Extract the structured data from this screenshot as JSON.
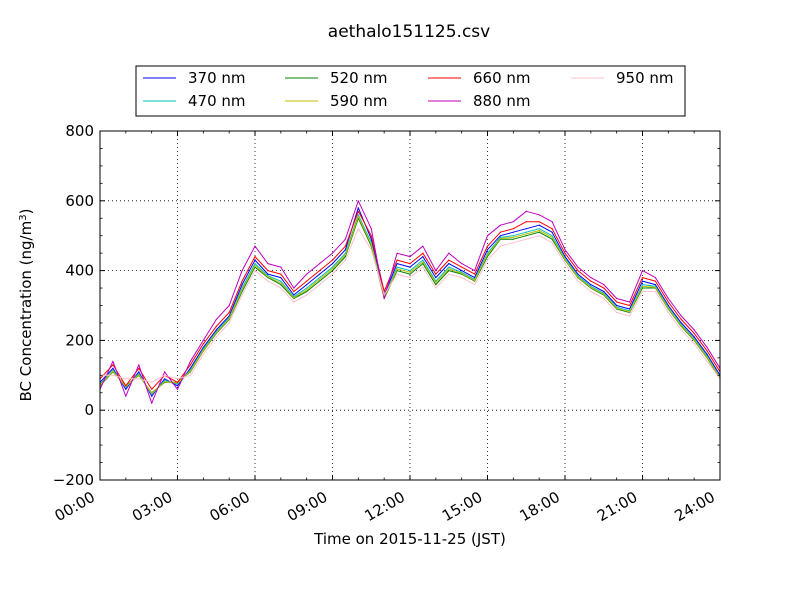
{
  "chart_data": {
    "type": "line",
    "title": "aethalo151125.csv",
    "xlabel": "Time on 2015-11-25 (JST)",
    "ylabel": "BC Concentration (ng/m3)",
    "ylabel_parts": {
      "base": "BC Concentration (ng/m",
      "sup": "3",
      "close": ")"
    },
    "xlim": [
      "00:00",
      "24:00"
    ],
    "ylim": [
      -200,
      800
    ],
    "x_ticks": [
      "00:00",
      "03:00",
      "06:00",
      "09:00",
      "12:00",
      "15:00",
      "18:00",
      "21:00",
      "24:00"
    ],
    "x_tick_hours": [
      0,
      3,
      6,
      9,
      12,
      15,
      18,
      21,
      24
    ],
    "y_ticks": [
      -200,
      0,
      200,
      400,
      600,
      800
    ],
    "grid": true,
    "legend_position": "top",
    "x_hours": [
      0,
      0.5,
      1,
      1.5,
      2,
      2.5,
      3,
      3.5,
      4,
      4.5,
      5,
      5.5,
      6,
      6.5,
      7,
      7.5,
      8,
      8.5,
      9,
      9.5,
      10,
      10.5,
      11,
      11.5,
      12,
      12.5,
      13,
      13.5,
      14,
      14.5,
      15,
      15.5,
      16,
      16.5,
      17,
      17.5,
      18,
      18.5,
      19,
      19.5,
      20,
      20.5,
      21,
      21.5,
      22,
      22.5,
      23,
      23.5,
      24
    ],
    "series": [
      {
        "name": "370 nm",
        "color": "#0000ff",
        "values": [
          80,
          120,
          60,
          110,
          40,
          90,
          70,
          120,
          180,
          230,
          270,
          360,
          430,
          390,
          380,
          330,
          360,
          390,
          420,
          460,
          580,
          490,
          330,
          420,
          410,
          440,
          380,
          420,
          400,
          380,
          460,
          500,
          510,
          520,
          530,
          510,
          440,
          390,
          360,
          340,
          300,
          290,
          370,
          360,
          300,
          250,
          210,
          160,
          100
        ]
      },
      {
        "name": "470 nm",
        "color": "#00bfbf",
        "values": [
          75,
          115,
          65,
          105,
          45,
          85,
          75,
          115,
          175,
          225,
          265,
          350,
          420,
          385,
          370,
          325,
          350,
          380,
          410,
          450,
          560,
          480,
          325,
          410,
          400,
          430,
          370,
          410,
          395,
          375,
          450,
          495,
          500,
          510,
          520,
          500,
          435,
          385,
          355,
          335,
          295,
          285,
          360,
          355,
          295,
          245,
          205,
          155,
          95
        ]
      },
      {
        "name": "520 nm",
        "color": "#008000",
        "values": [
          70,
          110,
          70,
          100,
          50,
          80,
          80,
          110,
          170,
          220,
          260,
          340,
          410,
          380,
          360,
          320,
          340,
          370,
          400,
          440,
          550,
          470,
          320,
          400,
          390,
          420,
          360,
          400,
          390,
          370,
          440,
          490,
          490,
          500,
          510,
          490,
          430,
          380,
          350,
          330,
          290,
          280,
          350,
          350,
          290,
          240,
          200,
          150,
          90
        ]
      },
      {
        "name": "590 nm",
        "color": "#bfbf00",
        "values": [
          72,
          112,
          68,
          102,
          48,
          82,
          78,
          112,
          172,
          222,
          262,
          345,
          415,
          382,
          365,
          322,
          345,
          375,
          405,
          445,
          555,
          475,
          322,
          405,
          395,
          425,
          365,
          405,
          392,
          372,
          445,
          492,
          495,
          505,
          515,
          495,
          432,
          382,
          352,
          332,
          292,
          282,
          355,
          352,
          292,
          242,
          202,
          152,
          92
        ]
      },
      {
        "name": "660 nm",
        "color": "#ff0000",
        "values": [
          90,
          130,
          70,
          120,
          60,
          100,
          80,
          130,
          190,
          240,
          280,
          370,
          440,
          400,
          390,
          340,
          370,
          400,
          430,
          470,
          570,
          500,
          340,
          430,
          420,
          450,
          390,
          430,
          410,
          390,
          470,
          510,
          520,
          540,
          540,
          520,
          450,
          400,
          370,
          350,
          310,
          300,
          380,
          370,
          310,
          260,
          220,
          170,
          110
        ]
      },
      {
        "name": "880 nm",
        "color": "#bf00bf",
        "values": [
          60,
          140,
          40,
          130,
          20,
          110,
          60,
          140,
          200,
          260,
          300,
          400,
          470,
          420,
          410,
          350,
          390,
          420,
          450,
          490,
          600,
          520,
          320,
          450,
          440,
          470,
          400,
          450,
          420,
          400,
          500,
          530,
          540,
          570,
          560,
          540,
          460,
          410,
          380,
          360,
          320,
          310,
          400,
          380,
          320,
          270,
          230,
          180,
          120
        ]
      },
      {
        "name": "950 nm",
        "color": "#ffc0cb",
        "values": [
          100,
          100,
          90,
          90,
          80,
          100,
          90,
          100,
          160,
          210,
          250,
          330,
          400,
          370,
          350,
          310,
          330,
          360,
          390,
          430,
          520,
          460,
          330,
          390,
          380,
          410,
          350,
          390,
          380,
          360,
          430,
          470,
          480,
          490,
          500,
          480,
          420,
          370,
          340,
          320,
          280,
          270,
          340,
          340,
          280,
          230,
          190,
          140,
          90
        ]
      }
    ]
  }
}
